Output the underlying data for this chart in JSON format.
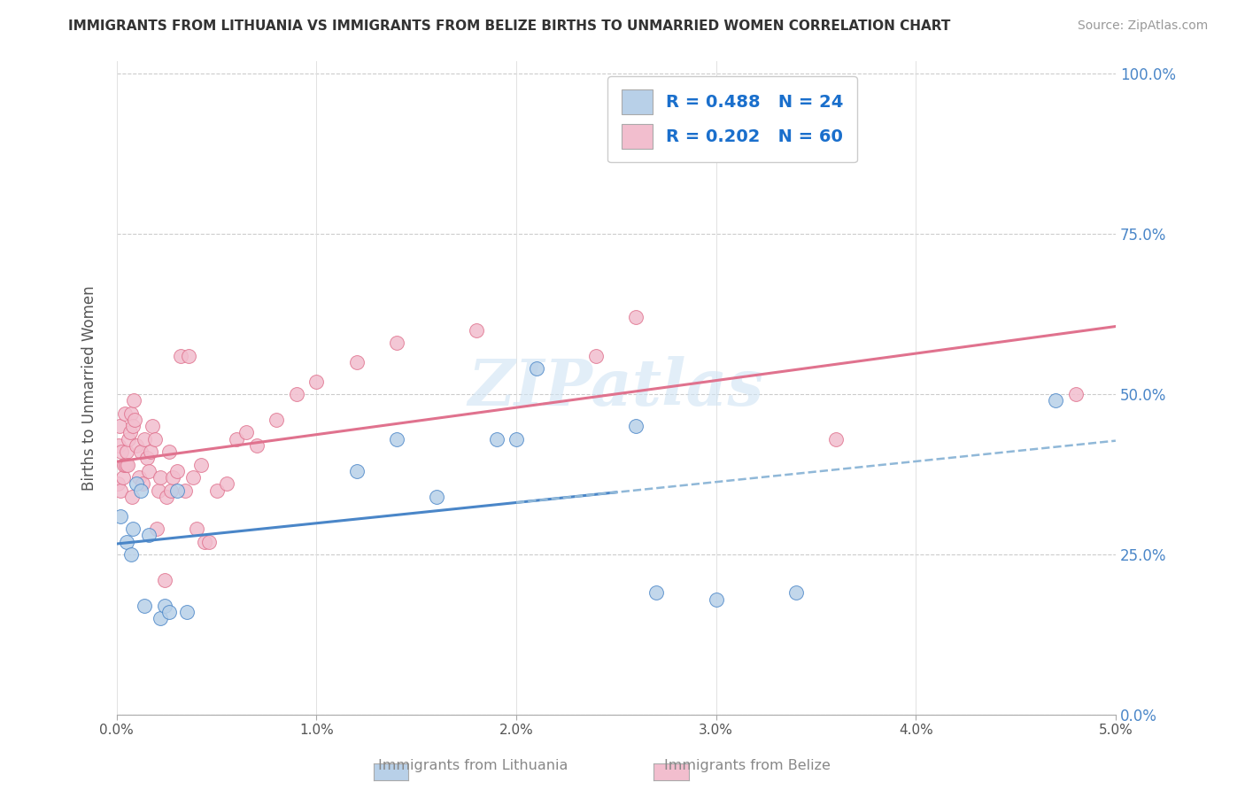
{
  "title": "IMMIGRANTS FROM LITHUANIA VS IMMIGRANTS FROM BELIZE BIRTHS TO UNMARRIED WOMEN CORRELATION CHART",
  "source": "Source: ZipAtlas.com",
  "xlabel_label": "Immigrants from Lithuania",
  "xlabel_label2": "Immigrants from Belize",
  "ylabel": "Births to Unmarried Women",
  "r_lithuania": 0.488,
  "n_lithuania": 24,
  "r_belize": 0.202,
  "n_belize": 60,
  "color_lithuania": "#b8d0e8",
  "color_belize": "#f2bece",
  "line_color_lithuania": "#4a86c8",
  "line_color_belize": "#e0728e",
  "line_color_dashed": "#90b8d8",
  "watermark": "ZIPatlas",
  "xmin": 0.0,
  "xmax": 0.05,
  "ymin": 0.0,
  "ymax": 1.0,
  "lithuania_x": [
    0.0002,
    0.0005,
    0.0007,
    0.0008,
    0.001,
    0.0012,
    0.0014,
    0.0016,
    0.0022,
    0.0024,
    0.0026,
    0.003,
    0.0035,
    0.012,
    0.014,
    0.016,
    0.019,
    0.02,
    0.021,
    0.026,
    0.027,
    0.03,
    0.034,
    0.047
  ],
  "lithuania_y": [
    0.31,
    0.27,
    0.25,
    0.29,
    0.36,
    0.35,
    0.17,
    0.28,
    0.15,
    0.17,
    0.16,
    0.35,
    0.16,
    0.38,
    0.43,
    0.34,
    0.43,
    0.43,
    0.54,
    0.45,
    0.19,
    0.18,
    0.19,
    0.49
  ],
  "belize_x": [
    5e-05,
    0.0001,
    0.00015,
    0.0002,
    0.00025,
    0.0003,
    0.00035,
    0.0004,
    0.00045,
    0.0005,
    0.00055,
    0.0006,
    0.00065,
    0.0007,
    0.00075,
    0.0008,
    0.00085,
    0.0009,
    0.001,
    0.0011,
    0.0012,
    0.0013,
    0.0014,
    0.0015,
    0.0016,
    0.0017,
    0.0018,
    0.0019,
    0.002,
    0.0021,
    0.0022,
    0.0024,
    0.0025,
    0.0026,
    0.0027,
    0.0028,
    0.003,
    0.0032,
    0.0034,
    0.0036,
    0.0038,
    0.004,
    0.0042,
    0.0044,
    0.0046,
    0.005,
    0.0055,
    0.006,
    0.0065,
    0.007,
    0.008,
    0.009,
    0.01,
    0.012,
    0.014,
    0.018,
    0.024,
    0.026,
    0.036,
    0.048
  ],
  "belize_y": [
    0.36,
    0.42,
    0.45,
    0.35,
    0.41,
    0.37,
    0.39,
    0.47,
    0.39,
    0.41,
    0.39,
    0.43,
    0.44,
    0.47,
    0.34,
    0.45,
    0.49,
    0.46,
    0.42,
    0.37,
    0.41,
    0.36,
    0.43,
    0.4,
    0.38,
    0.41,
    0.45,
    0.43,
    0.29,
    0.35,
    0.37,
    0.21,
    0.34,
    0.41,
    0.35,
    0.37,
    0.38,
    0.56,
    0.35,
    0.56,
    0.37,
    0.29,
    0.39,
    0.27,
    0.27,
    0.35,
    0.36,
    0.43,
    0.44,
    0.42,
    0.46,
    0.5,
    0.52,
    0.55,
    0.58,
    0.6,
    0.56,
    0.62,
    0.43,
    0.5
  ]
}
